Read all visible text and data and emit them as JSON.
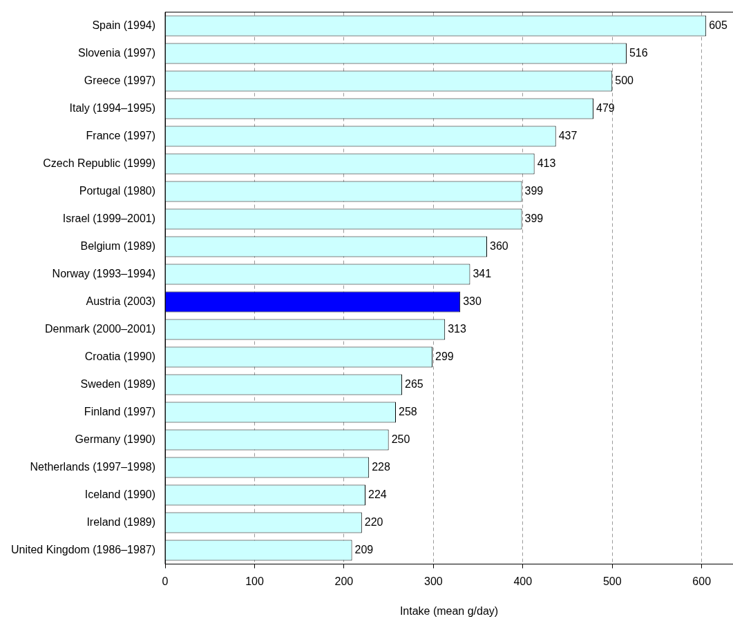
{
  "chart_data": {
    "type": "bar",
    "orientation": "horizontal",
    "xlabel": "Intake (mean g/day)",
    "categories": [
      "Spain (1994)",
      "Slovenia (1997)",
      "Greece (1997)",
      "Italy (1994–1995)",
      "France (1997)",
      "Czech Republic (1999)",
      "Portugal (1980)",
      "Israel (1999–2001)",
      "Belgium (1989)",
      "Norway (1993–1994)",
      "Austria (2003)",
      "Denmark (2000–2001)",
      "Croatia (1990)",
      "Sweden (1989)",
      "Finland (1997)",
      "Germany (1990)",
      "Netherlands (1997–1998)",
      "Iceland (1990)",
      "Ireland (1989)",
      "United Kingdom (1986–1987)"
    ],
    "values": [
      605,
      516,
      500,
      479,
      437,
      413,
      399,
      399,
      360,
      341,
      330,
      313,
      299,
      265,
      258,
      250,
      228,
      224,
      220,
      209
    ],
    "colors": [
      "#ccffff",
      "#ccffff",
      "#ccffff",
      "#ccffff",
      "#ccffff",
      "#ccffff",
      "#ccffff",
      "#ccffff",
      "#ccffff",
      "#ccffff",
      "#0000ff",
      "#ccffff",
      "#ccffff",
      "#ccffff",
      "#ccffff",
      "#ccffff",
      "#ccffff",
      "#ccffff",
      "#ccffff",
      "#ccffff"
    ],
    "xlim": [
      0,
      635
    ],
    "xticks": [
      0,
      100,
      200,
      300,
      400,
      500,
      600
    ],
    "grid": "x",
    "data_labels": true
  }
}
